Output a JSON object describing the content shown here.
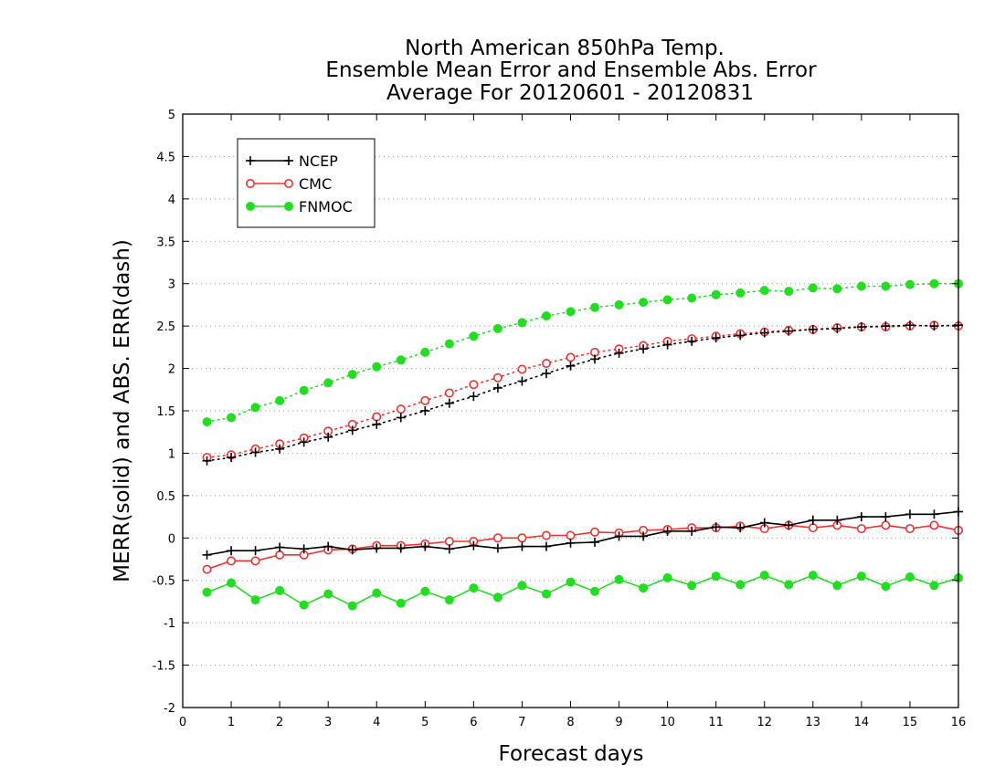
{
  "chart_data": {
    "type": "line",
    "title": [
      "North American 850hPa Temp.",
      "Ensemble Mean Error and Ensemble Abs. Error",
      "Average For 20120601 - 20120831"
    ],
    "xlabel": "Forecast days",
    "ylabel": "MERR(solid) and ABS. ERR(dash)",
    "xlim": [
      0,
      16
    ],
    "ylim": [
      -2,
      5
    ],
    "xticks": [
      0,
      1,
      2,
      3,
      4,
      5,
      6,
      7,
      8,
      9,
      10,
      11,
      12,
      13,
      14,
      15,
      16
    ],
    "yticks": [
      -2,
      -1.5,
      -1,
      -0.5,
      0,
      0.5,
      1,
      1.5,
      2,
      2.5,
      3,
      3.5,
      4,
      4.5,
      5
    ],
    "ytick_labels": [
      "-2",
      "-1.5",
      "-1",
      "-0.5",
      "0",
      "0.5",
      "1",
      "1.5",
      "2",
      "2.5",
      "3",
      "3.5",
      "4",
      "4.5",
      "5"
    ],
    "grid": "horizontal dotted",
    "legend_position": "top-left",
    "x": [
      0.5,
      1,
      1.5,
      2,
      2.5,
      3,
      3.5,
      4,
      4.5,
      5,
      5.5,
      6,
      6.5,
      7,
      7.5,
      8,
      8.5,
      9,
      9.5,
      10,
      10.5,
      11,
      11.5,
      12,
      12.5,
      13,
      13.5,
      14,
      14.5,
      15,
      15.5,
      16
    ],
    "series": [
      {
        "name": "NCEP",
        "color": "#000000",
        "marker": "plus",
        "merr": [
          -0.2,
          -0.15,
          -0.15,
          -0.11,
          -0.13,
          -0.1,
          -0.14,
          -0.12,
          -0.12,
          -0.1,
          -0.13,
          -0.09,
          -0.12,
          -0.1,
          -0.1,
          -0.06,
          -0.05,
          0.02,
          0.02,
          0.08,
          0.08,
          0.13,
          0.12,
          0.18,
          0.15,
          0.21,
          0.21,
          0.25,
          0.25,
          0.28,
          0.28,
          0.31
        ],
        "abserr": [
          0.91,
          0.95,
          1.01,
          1.05,
          1.13,
          1.19,
          1.27,
          1.34,
          1.42,
          1.5,
          1.59,
          1.67,
          1.77,
          1.85,
          1.94,
          2.03,
          2.11,
          2.18,
          2.23,
          2.28,
          2.32,
          2.36,
          2.39,
          2.42,
          2.44,
          2.46,
          2.47,
          2.49,
          2.5,
          2.51,
          2.5,
          2.51
        ]
      },
      {
        "name": "CMC",
        "color": "#ee3333",
        "marker": "open-circle",
        "merr": [
          -0.37,
          -0.27,
          -0.27,
          -0.2,
          -0.2,
          -0.14,
          -0.13,
          -0.09,
          -0.09,
          -0.07,
          -0.04,
          -0.04,
          0.0,
          0.0,
          0.03,
          0.03,
          0.07,
          0.06,
          0.09,
          0.1,
          0.12,
          0.12,
          0.14,
          0.11,
          0.15,
          0.12,
          0.15,
          0.11,
          0.15,
          0.11,
          0.15,
          0.09
        ],
        "abserr": [
          0.95,
          0.98,
          1.05,
          1.11,
          1.18,
          1.26,
          1.34,
          1.43,
          1.52,
          1.62,
          1.71,
          1.81,
          1.89,
          1.99,
          2.06,
          2.13,
          2.19,
          2.23,
          2.27,
          2.32,
          2.35,
          2.38,
          2.41,
          2.43,
          2.45,
          2.46,
          2.48,
          2.49,
          2.49,
          2.5,
          2.51,
          2.5
        ]
      },
      {
        "name": "FNMOC",
        "color": "#22dd22",
        "marker": "filled-circle",
        "merr": [
          -0.64,
          -0.53,
          -0.73,
          -0.62,
          -0.79,
          -0.66,
          -0.8,
          -0.65,
          -0.77,
          -0.63,
          -0.73,
          -0.59,
          -0.7,
          -0.56,
          -0.66,
          -0.52,
          -0.63,
          -0.49,
          -0.59,
          -0.47,
          -0.56,
          -0.45,
          -0.55,
          -0.44,
          -0.55,
          -0.44,
          -0.56,
          -0.45,
          -0.57,
          -0.46,
          -0.56,
          -0.47
        ],
        "abserr": [
          1.37,
          1.42,
          1.54,
          1.62,
          1.74,
          1.83,
          1.93,
          2.02,
          2.1,
          2.19,
          2.29,
          2.38,
          2.47,
          2.54,
          2.62,
          2.67,
          2.72,
          2.75,
          2.78,
          2.81,
          2.83,
          2.87,
          2.89,
          2.92,
          2.91,
          2.95,
          2.94,
          2.97,
          2.97,
          2.99,
          3.0,
          3.0
        ]
      }
    ]
  }
}
